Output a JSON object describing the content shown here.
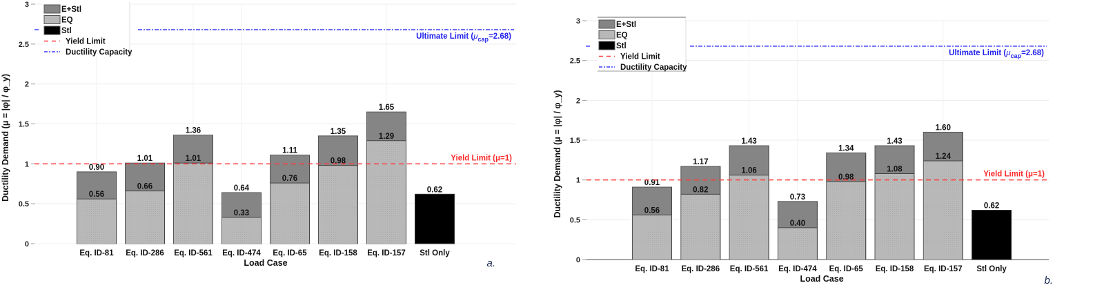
{
  "colors": {
    "e_stl": "#858585",
    "eq": "#b9b9b9",
    "stl": "#000000",
    "yield": "#ff3b3b",
    "capacity": "#3a3aff",
    "grid": "#ececec"
  },
  "chart_data": [
    {
      "type": "bar",
      "panel_label": "a.",
      "stacked": true,
      "title": "",
      "xlabel": "Load Case",
      "ylabel": "Ductility Demand (μ = |φ| / φ_y)",
      "ylim": [
        0,
        3
      ],
      "yticks": [
        "0",
        "0.5",
        "1",
        "1.5",
        "2",
        "2.5",
        "3"
      ],
      "grid": true,
      "legend_position": "top-left",
      "legend": [
        "E+Stl",
        "EQ",
        "Stl",
        "Yield Limit",
        "Ductility Capacity"
      ],
      "categories": [
        "Eq. ID-81",
        "Eq. ID-286",
        "Eq. ID-561",
        "Eq. ID-474",
        "Eq. ID-65",
        "Eq. ID-158",
        "Eq. ID-157",
        "Stl Only"
      ],
      "series": [
        {
          "name": "EQ",
          "values": [
            0.56,
            0.66,
            1.01,
            0.33,
            0.76,
            0.98,
            1.29,
            null
          ],
          "labels": [
            "0.56",
            "0.66",
            "1.01",
            "0.33",
            "0.76",
            "0.98",
            "1.29",
            null
          ]
        },
        {
          "name": "E+Stl",
          "values": [
            0.9,
            1.01,
            1.36,
            0.64,
            1.11,
            1.35,
            1.65,
            null
          ],
          "labels": [
            "0.90",
            "1.01",
            "1.36",
            "0.64",
            "1.11",
            "1.35",
            "1.65",
            null
          ]
        },
        {
          "name": "Stl",
          "values": [
            null,
            null,
            null,
            null,
            null,
            null,
            null,
            0.62
          ],
          "labels": [
            null,
            null,
            null,
            null,
            null,
            null,
            null,
            "0.62"
          ]
        }
      ],
      "reference_lines": [
        {
          "name": "Yield Limit",
          "y": 1,
          "label": "Yield Limit (μ=1)",
          "style": "dashed",
          "color": "#ff3b3b"
        },
        {
          "name": "Ductility Capacity",
          "y": 2.68,
          "label_main": "Ultimate Limit (",
          "label_mu": "μ",
          "label_sub": "cap",
          "label_tail": "=2.68)",
          "style": "dash-dot",
          "color": "#3a3aff"
        }
      ]
    },
    {
      "type": "bar",
      "panel_label": "b.",
      "stacked": true,
      "title": "",
      "xlabel": "Load Case",
      "ylabel": "Ductility Demand (μ = |φ| / φ_y)",
      "ylim": [
        0,
        3
      ],
      "yticks": [
        "0",
        "0.5",
        "1",
        "1.5",
        "2",
        "2.5",
        "3"
      ],
      "grid": true,
      "legend_position": "top-left",
      "legend": [
        "E+Stl",
        "EQ",
        "Stl",
        "Yield Limit",
        "Ductility Capacity"
      ],
      "categories": [
        "Eq. ID-81",
        "Eq. ID-286",
        "Eq. ID-561",
        "Eq. ID-474",
        "Eq. ID-65",
        "Eq. ID-158",
        "Eq. ID-157",
        "Stl Only"
      ],
      "series": [
        {
          "name": "EQ",
          "values": [
            0.56,
            0.82,
            1.06,
            0.4,
            0.98,
            1.08,
            1.24,
            null
          ],
          "labels": [
            "0.56",
            "0.82",
            "1.06",
            "0.40",
            "0.98",
            "1.08",
            "1.24",
            null
          ]
        },
        {
          "name": "E+Stl",
          "values": [
            0.91,
            1.17,
            1.43,
            0.73,
            1.34,
            1.43,
            1.6,
            null
          ],
          "labels": [
            "0.91",
            "1.17",
            "1.43",
            "0.73",
            "1.34",
            "1.43",
            "1.60",
            null
          ]
        },
        {
          "name": "Stl",
          "values": [
            null,
            null,
            null,
            null,
            null,
            null,
            null,
            0.62
          ],
          "labels": [
            null,
            null,
            null,
            null,
            null,
            null,
            null,
            "0.62"
          ]
        }
      ],
      "reference_lines": [
        {
          "name": "Yield Limit",
          "y": 1,
          "label": "Yield Limit (μ=1)",
          "style": "dashed",
          "color": "#ff3b3b"
        },
        {
          "name": "Ductility Capacity",
          "y": 2.68,
          "label_main": "Ultimate Limit (",
          "label_mu": "μ",
          "label_sub": "cap",
          "label_tail": "=2.68)",
          "style": "dash-dot",
          "color": "#3a3aff"
        }
      ]
    }
  ]
}
